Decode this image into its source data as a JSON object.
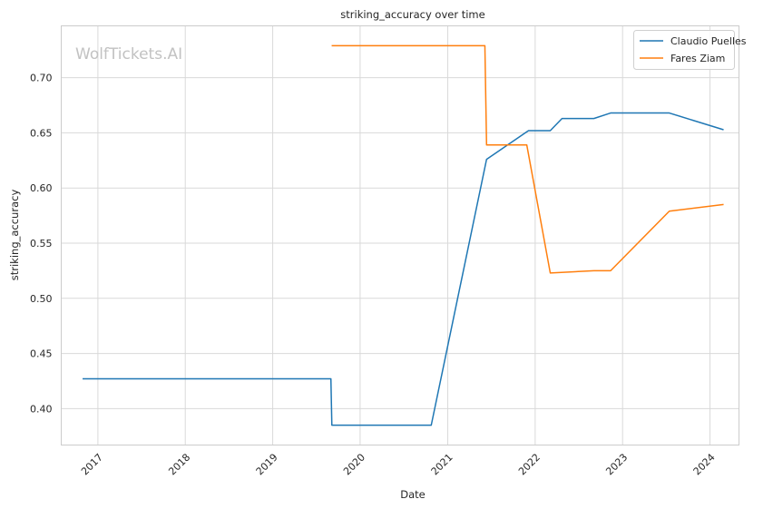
{
  "chart_data": {
    "type": "line",
    "title": "striking_accuracy over time",
    "xlabel": "Date",
    "ylabel": "striking_accuracy",
    "watermark": "WolfTickets.AI",
    "x_ticks": [
      "2017",
      "2018",
      "2019",
      "2020",
      "2021",
      "2022",
      "2023",
      "2024"
    ],
    "y_ticks": [
      "0.40",
      "0.45",
      "0.50",
      "0.55",
      "0.60",
      "0.65",
      "0.70"
    ],
    "xlim": [
      "2016-08-01",
      "2024-05-01"
    ],
    "ylim": [
      0.367,
      0.747
    ],
    "grid": true,
    "legend_position": "top-right",
    "series": [
      {
        "name": "Claudio Puelles",
        "color": "#1f77b4",
        "points": [
          {
            "x": "2016-11-01",
            "y": 0.427
          },
          {
            "x": "2019-09-01",
            "y": 0.427
          },
          {
            "x": "2019-09-05",
            "y": 0.385
          },
          {
            "x": "2020-10-24",
            "y": 0.385
          },
          {
            "x": "2021-06-12",
            "y": 0.626
          },
          {
            "x": "2021-12-04",
            "y": 0.652
          },
          {
            "x": "2022-03-05",
            "y": 0.652
          },
          {
            "x": "2022-04-23",
            "y": 0.663
          },
          {
            "x": "2022-09-03",
            "y": 0.663
          },
          {
            "x": "2022-11-12",
            "y": 0.668
          },
          {
            "x": "2023-07-15",
            "y": 0.668
          },
          {
            "x": "2024-02-24",
            "y": 0.653
          }
        ]
      },
      {
        "name": "Fares Ziam",
        "color": "#ff7f0e",
        "points": [
          {
            "x": "2019-09-07",
            "y": 0.729
          },
          {
            "x": "2021-06-05",
            "y": 0.729
          },
          {
            "x": "2021-06-12",
            "y": 0.639
          },
          {
            "x": "2021-11-27",
            "y": 0.639
          },
          {
            "x": "2022-03-05",
            "y": 0.523
          },
          {
            "x": "2022-09-03",
            "y": 0.525
          },
          {
            "x": "2022-11-12",
            "y": 0.525
          },
          {
            "x": "2023-07-15",
            "y": 0.579
          },
          {
            "x": "2024-02-24",
            "y": 0.585
          }
        ]
      }
    ]
  }
}
